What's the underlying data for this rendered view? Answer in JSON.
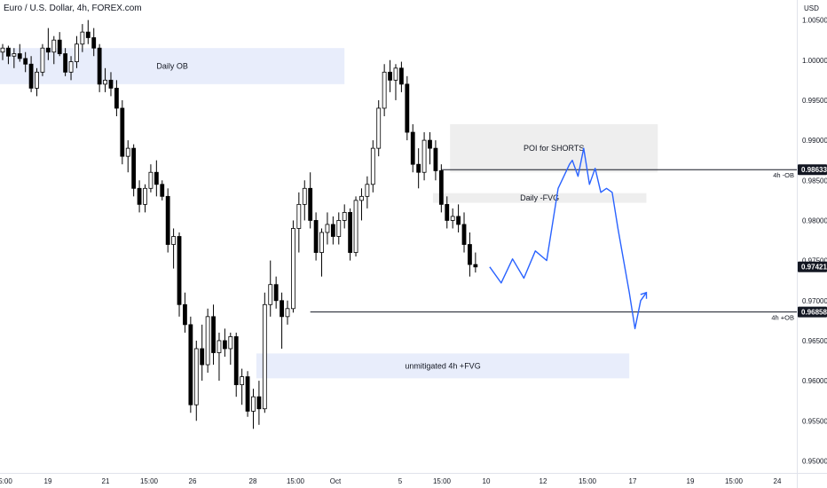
{
  "header": {
    "title": "Euro / U.S. Dollar, 4h, FOREX.com"
  },
  "chart_data": {
    "type": "candlestick",
    "title": "Euro / U.S. Dollar, 4h, FOREX.com",
    "currency": "USD",
    "ylim": [
      0.9485,
      1.0075
    ],
    "y_ticks": [
      0.95,
      0.955,
      0.96,
      0.965,
      0.97,
      0.975,
      0.98,
      0.985,
      0.99,
      0.995,
      1.0,
      1.005
    ],
    "y_tick_labels": [
      "0.95000",
      "0.95500",
      "0.96000",
      "0.96500",
      "0.97000",
      "0.97500",
      "0.98000",
      "0.98500",
      "0.99000",
      "0.99500",
      "1.00000",
      "1.00500"
    ],
    "x_tick_labels": [
      "5:00",
      "19",
      "21",
      "15:00",
      "26",
      "28",
      "15:00",
      "Oct",
      "5",
      "15:00",
      "10",
      "12",
      "15:00",
      "17",
      "19",
      "15:00",
      "24"
    ],
    "colors": {
      "candle": "#000000",
      "projection": "#2962ff",
      "zone": "#e8edfb",
      "grey_zone": "#eeeeee",
      "tag_bg": "#131722",
      "level_line": "#131722"
    },
    "candles": [
      [
        1.001,
        1.002,
        1.0,
        1.0015
      ],
      [
        1.0015,
        1.0018,
        0.9995,
        1.0005
      ],
      [
        1.0005,
        1.0015,
        0.999,
        1.0008
      ],
      [
        1.0008,
        1.002,
        0.9998,
        1.0002
      ],
      [
        1.0002,
        1.001,
        0.9985,
        0.9995
      ],
      [
        0.9995,
        1.0005,
        0.996,
        0.9965
      ],
      [
        0.9965,
        0.999,
        0.9955,
        0.9985
      ],
      [
        0.9985,
        1.002,
        0.998,
        1.0015
      ],
      [
        1.0015,
        1.004,
        1.0,
        1.001
      ],
      [
        1.001,
        1.003,
        0.9995,
        1.0025
      ],
      [
        1.0025,
        1.0035,
        1.0005,
        1.0008
      ],
      [
        1.0008,
        1.0015,
        0.998,
        0.9985
      ],
      [
        0.9985,
        1.0005,
        0.9975,
        0.9998
      ],
      [
        0.9998,
        1.003,
        0.999,
        1.002
      ],
      [
        1.002,
        1.0045,
        1.001,
        1.0035
      ],
      [
        1.0035,
        1.005,
        1.002,
        1.0028
      ],
      [
        1.0028,
        1.004,
        1.0005,
        1.0015
      ],
      [
        1.0015,
        1.002,
        0.996,
        0.997
      ],
      [
        0.997,
        0.999,
        0.996,
        0.9975
      ],
      [
        0.9975,
        0.9985,
        0.9955,
        0.9965
      ],
      [
        0.9965,
        0.9975,
        0.993,
        0.994
      ],
      [
        0.994,
        0.995,
        0.987,
        0.988
      ],
      [
        0.988,
        0.99,
        0.986,
        0.989
      ],
      [
        0.989,
        0.9895,
        0.983,
        0.984
      ],
      [
        0.984,
        0.985,
        0.981,
        0.982
      ],
      [
        0.982,
        0.9845,
        0.981,
        0.984
      ],
      [
        0.984,
        0.987,
        0.9835,
        0.986
      ],
      [
        0.986,
        0.9875,
        0.983,
        0.9845
      ],
      [
        0.9845,
        0.985,
        0.9825,
        0.983
      ],
      [
        0.983,
        0.984,
        0.976,
        0.977
      ],
      [
        0.977,
        0.979,
        0.974,
        0.978
      ],
      [
        0.978,
        0.9785,
        0.968,
        0.9695
      ],
      [
        0.9695,
        0.971,
        0.966,
        0.967
      ],
      [
        0.967,
        0.968,
        0.956,
        0.957
      ],
      [
        0.957,
        0.965,
        0.955,
        0.964
      ],
      [
        0.964,
        0.967,
        0.96,
        0.962
      ],
      [
        0.962,
        0.969,
        0.961,
        0.968
      ],
      [
        0.968,
        0.9695,
        0.962,
        0.9635
      ],
      [
        0.9635,
        0.966,
        0.96,
        0.965
      ],
      [
        0.965,
        0.9665,
        0.963,
        0.964
      ],
      [
        0.964,
        0.966,
        0.962,
        0.9655
      ],
      [
        0.9655,
        0.966,
        0.958,
        0.9595
      ],
      [
        0.9595,
        0.9615,
        0.957,
        0.9605
      ],
      [
        0.9605,
        0.9612,
        0.9555,
        0.9562
      ],
      [
        0.9562,
        0.959,
        0.954,
        0.958
      ],
      [
        0.958,
        0.96,
        0.9545,
        0.9565
      ],
      [
        0.9565,
        0.971,
        0.956,
        0.9695
      ],
      [
        0.9695,
        0.975,
        0.968,
        0.972
      ],
      [
        0.972,
        0.973,
        0.969,
        0.97
      ],
      [
        0.97,
        0.971,
        0.964,
        0.968
      ],
      [
        0.968,
        0.97,
        0.967,
        0.969
      ],
      [
        0.969,
        0.98,
        0.9685,
        0.979
      ],
      [
        0.979,
        0.9835,
        0.976,
        0.982
      ],
      [
        0.982,
        0.985,
        0.98,
        0.984
      ],
      [
        0.984,
        0.986,
        0.979,
        0.98
      ],
      [
        0.98,
        0.981,
        0.975,
        0.976
      ],
      [
        0.976,
        0.979,
        0.973,
        0.9785
      ],
      [
        0.9785,
        0.981,
        0.977,
        0.9795
      ],
      [
        0.9795,
        0.9805,
        0.977,
        0.978
      ],
      [
        0.978,
        0.981,
        0.977,
        0.98
      ],
      [
        0.98,
        0.982,
        0.979,
        0.981
      ],
      [
        0.981,
        0.9815,
        0.975,
        0.976
      ],
      [
        0.976,
        0.983,
        0.9755,
        0.9825
      ],
      [
        0.9825,
        0.984,
        0.98,
        0.983
      ],
      [
        0.983,
        0.9855,
        0.9815,
        0.9845
      ],
      [
        0.9845,
        0.99,
        0.9835,
        0.989
      ],
      [
        0.989,
        0.995,
        0.988,
        0.994
      ],
      [
        0.994,
        0.9995,
        0.993,
        0.9985
      ],
      [
        0.9985,
        1.0,
        0.996,
        0.9975
      ],
      [
        0.9975,
        0.9995,
        0.995,
        0.999
      ],
      [
        0.999,
        0.9998,
        0.996,
        0.997
      ],
      [
        0.997,
        0.998,
        0.99,
        0.991
      ],
      [
        0.991,
        0.992,
        0.986,
        0.987
      ],
      [
        0.987,
        0.989,
        0.984,
        0.986
      ],
      [
        0.986,
        0.991,
        0.985,
        0.99
      ],
      [
        0.99,
        0.991,
        0.987,
        0.989
      ],
      [
        0.989,
        0.99,
        0.985,
        0.9862
      ],
      [
        0.9862,
        0.987,
        0.981,
        0.982
      ],
      [
        0.982,
        0.983,
        0.979,
        0.98
      ],
      [
        0.98,
        0.9815,
        0.979,
        0.9805
      ],
      [
        0.9805,
        0.982,
        0.9785,
        0.9795
      ],
      [
        0.9795,
        0.981,
        0.976,
        0.977
      ],
      [
        0.977,
        0.9785,
        0.973,
        0.9745
      ],
      [
        0.9745,
        0.976,
        0.9735,
        0.9742
      ]
    ],
    "zones": [
      {
        "label": "Daily OB",
        "top": 1.0015,
        "bottom": 0.997,
        "from": 0,
        "to": 60
      },
      {
        "label": "POI for SHORTS",
        "top": 0.992,
        "bottom": 0.986,
        "from": 79,
        "to": 115
      },
      {
        "label": "Daily -FVG",
        "top": 0.9834,
        "bottom": 0.9822,
        "from": 76,
        "to": 113
      },
      {
        "label": "unmitigated 4h +FVG",
        "top": 0.9634,
        "bottom": 0.9603,
        "from": 45,
        "to": 110
      }
    ],
    "levels": [
      {
        "label": "4h -OB",
        "value": 0.98633,
        "from": 77,
        "tag": "0.98633"
      },
      {
        "label": "4h +OB",
        "value": 0.96858,
        "from": 54,
        "tag": "0.96858"
      }
    ],
    "last_price_tag": "0.97421",
    "projection": [
      [
        85.5,
        0.9742
      ],
      [
        87.5,
        0.9722
      ],
      [
        89.5,
        0.9752
      ],
      [
        91.5,
        0.9728
      ],
      [
        93.5,
        0.9762
      ],
      [
        95.5,
        0.975
      ],
      [
        97.5,
        0.984
      ],
      [
        99.5,
        0.987
      ],
      [
        100,
        0.9875
      ],
      [
        101,
        0.9855
      ],
      [
        102,
        0.989
      ],
      [
        103,
        0.9845
      ],
      [
        104,
        0.9865
      ],
      [
        105,
        0.9835
      ],
      [
        106,
        0.984
      ],
      [
        107,
        0.9835
      ],
      [
        108,
        0.979
      ],
      [
        109,
        0.975
      ],
      [
        110,
        0.971
      ],
      [
        111,
        0.9665
      ],
      [
        112,
        0.97
      ],
      [
        113,
        0.971
      ]
    ]
  }
}
